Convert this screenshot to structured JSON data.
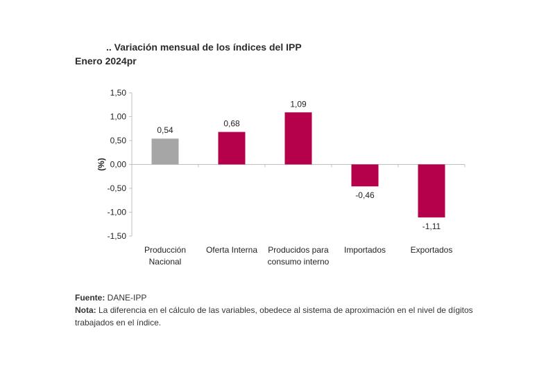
{
  "chart_data": {
    "type": "bar",
    "title": ".. Variación mensual de los índices del IPP",
    "subtitle": "Enero 2024pr",
    "xlabel": "",
    "ylabel": "(%)",
    "ylim": [
      -1.5,
      1.5
    ],
    "yticks": [
      1.5,
      1.0,
      0.5,
      0.0,
      -0.5,
      -1.0,
      -1.5
    ],
    "ytick_labels": [
      "1,50",
      "1,00",
      "0,50",
      "0,00",
      "-0,50",
      "-1,00",
      "-1,50"
    ],
    "grid": false,
    "categories": [
      [
        "Producción",
        "Nacional"
      ],
      [
        "Oferta Interna"
      ],
      [
        "Producidos para",
        "consumo interno"
      ],
      [
        "Importados"
      ],
      [
        "Exportados"
      ]
    ],
    "values": [
      0.54,
      0.68,
      1.09,
      -0.46,
      -1.11
    ],
    "value_labels": [
      "0,54",
      "0,68",
      "1,09",
      "-0,46",
      "-1,11"
    ],
    "colors": [
      "#a6a6a6",
      "#b5004b",
      "#b5004b",
      "#b5004b",
      "#b5004b"
    ]
  },
  "footer": {
    "source_label": "Fuente:",
    "source_text": " DANE-IPP",
    "note_label": "Nota:",
    "note_text": " La diferencia en el cálculo de las variables, obedece al sistema de aproximación en el nivel de dígitos trabajados en el índice."
  }
}
